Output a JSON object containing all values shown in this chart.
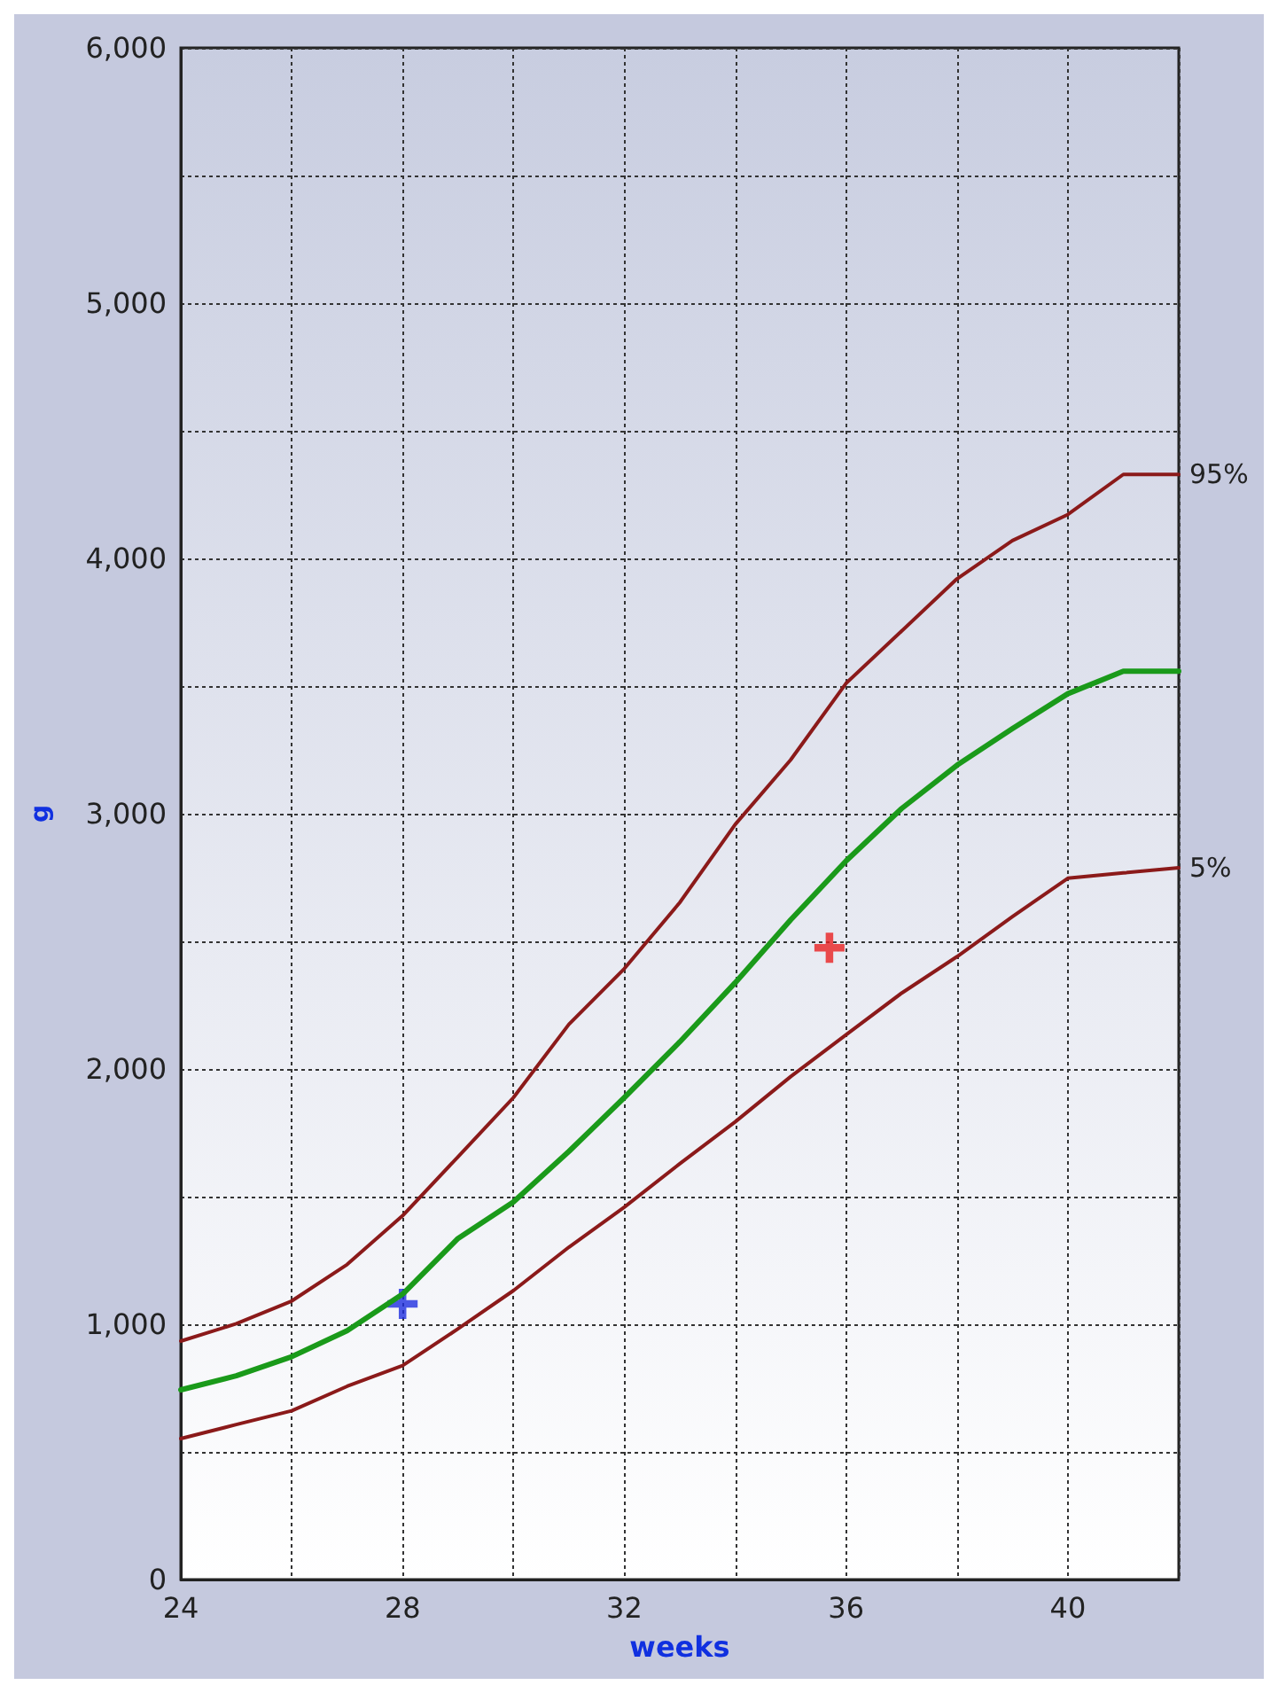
{
  "chart_data": {
    "type": "line",
    "xlabel": "weeks",
    "ylabel": "g",
    "xlim": [
      24,
      42
    ],
    "ylim": [
      0,
      6000
    ],
    "xticks": [
      24,
      {
        "value": 26,
        "label": null
      },
      28,
      {
        "value": 30,
        "label": null
      },
      32,
      {
        "value": 34,
        "label": null
      },
      36,
      {
        "value": 38,
        "label": null
      },
      40,
      {
        "value": 42,
        "label": null
      }
    ],
    "yticks": [
      0,
      {
        "value": 500,
        "label": null
      },
      {
        "value": 1000,
        "label": "1,000"
      },
      {
        "value": 1500,
        "label": null
      },
      {
        "value": 2000,
        "label": "2,000"
      },
      {
        "value": 2500,
        "label": null
      },
      {
        "value": 3000,
        "label": "3,000"
      },
      {
        "value": 3500,
        "label": null
      },
      {
        "value": 4000,
        "label": "4,000"
      },
      {
        "value": 4500,
        "label": null
      },
      {
        "value": 5000,
        "label": "5,000"
      },
      {
        "value": 5500,
        "label": null
      },
      {
        "value": 6000,
        "label": "6,000"
      }
    ],
    "grid": true,
    "marker": "none",
    "line_style": "solid",
    "series": [
      {
        "name": "95%",
        "color": "#8b1a1a",
        "x": [
          24,
          25,
          26,
          27,
          28,
          29,
          30,
          31,
          32,
          33,
          34,
          35,
          36,
          37,
          38,
          39,
          40,
          41,
          42
        ],
        "values": [
          934,
          1002,
          1091,
          1234,
          1425,
          1656,
          1888,
          2175,
          2393,
          2652,
          2958,
          3211,
          3511,
          3715,
          3920,
          4070,
          4172,
          4329,
          4329
        ]
      },
      {
        "color": "#1a9a1a",
        "x": [
          24,
          25,
          26,
          27,
          28,
          29,
          30,
          31,
          32,
          33,
          34,
          35,
          36,
          37,
          38,
          39,
          40,
          41,
          42
        ],
        "values": [
          743,
          798,
          873,
          975,
          1118,
          1336,
          1479,
          1677,
          1888,
          2106,
          2338,
          2584,
          2815,
          3020,
          3190,
          3333,
          3470,
          3558,
          3558
        ]
      },
      {
        "name": "5%",
        "color": "#8b1a1a",
        "x": [
          24,
          25,
          26,
          27,
          28,
          29,
          30,
          31,
          32,
          33,
          34,
          35,
          36,
          37,
          38,
          39,
          40,
          41,
          42
        ],
        "values": [
          552,
          607,
          661,
          757,
          838,
          982,
          1132,
          1302,
          1459,
          1629,
          1793,
          1970,
          2134,
          2297,
          2440,
          2597,
          2747,
          2768,
          2788
        ]
      },
      {
        "type": "scatter",
        "marker": "cross",
        "color": "#1f2fe0",
        "x": [
          28
        ],
        "values": [
          1080
        ]
      },
      {
        "type": "scatter",
        "marker": "cross",
        "color": "#e82020",
        "x": [
          35.7
        ],
        "values": [
          2475
        ]
      }
    ]
  }
}
